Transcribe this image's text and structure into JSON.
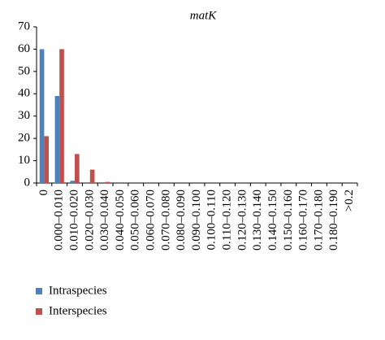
{
  "chart_data": {
    "type": "bar",
    "title": "matK",
    "categories": [
      "0",
      "0.000–0.010",
      "0.010–0.020",
      "0.020–0.030",
      "0.030–0.040",
      "0.040–0.050",
      "0.050–0.060",
      "0.060–0.070",
      "0.070–0.080",
      "0.080–0.090",
      "0.090–0.100",
      "0.100–0.110",
      "0.110–0.120",
      "0.120–0.130",
      "0.130–0.140",
      "0.140–0.150",
      "0.150–0.160",
      "0.160–0.170",
      "0.170–0.180",
      "0.180–0.190",
      ">0.2"
    ],
    "series": [
      {
        "name": "Intraspecies",
        "color": "#4f81bd",
        "values": [
          60,
          39,
          1,
          0,
          0,
          0,
          0,
          0,
          0,
          0,
          0,
          0,
          0,
          0,
          0,
          0,
          0,
          0,
          0,
          0,
          0
        ]
      },
      {
        "name": "Interspecies",
        "color": "#c0504d",
        "values": [
          21,
          60,
          13,
          6,
          0.5,
          0,
          0,
          0,
          0,
          0,
          0,
          0,
          0,
          0,
          0,
          0,
          0,
          0,
          0,
          0,
          0
        ]
      }
    ],
    "ylim": [
      0,
      70
    ],
    "yticks": [
      0,
      10,
      20,
      30,
      40,
      50,
      60,
      70
    ],
    "grid": false,
    "legend": "bottom-left"
  }
}
